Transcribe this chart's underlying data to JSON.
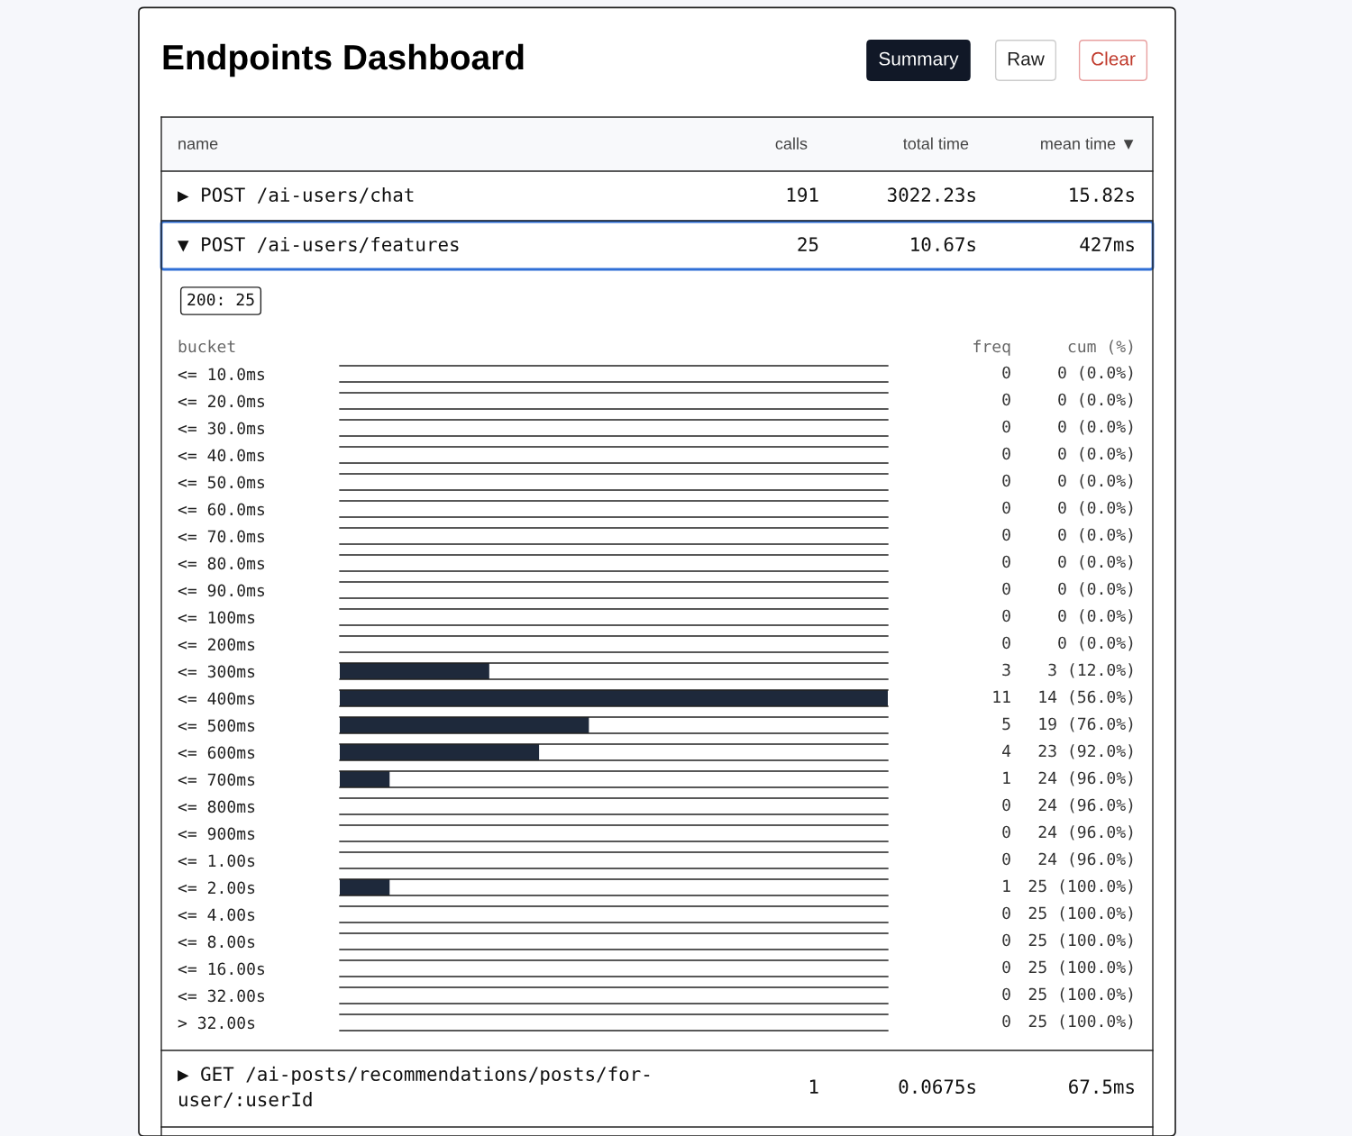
{
  "chart_data": {
    "type": "bar",
    "orientation": "horizontal",
    "title": "Endpoints Dashboard",
    "ylabel": "bucket",
    "categories": [
      "<= 10.0ms",
      "<= 20.0ms",
      "<= 30.0ms",
      "<= 40.0ms",
      "<= 50.0ms",
      "<= 60.0ms",
      "<= 70.0ms",
      "<= 80.0ms",
      "<= 90.0ms",
      "<= 100ms",
      "<= 200ms",
      "<= 300ms",
      "<= 400ms",
      "<= 500ms",
      "<= 600ms",
      "<= 700ms",
      "<= 800ms",
      "<= 900ms",
      "<= 1.00s",
      "<= 2.00s",
      "<= 4.00s",
      "<= 8.00s",
      "<= 16.00s",
      "<= 32.00s",
      "> 32.00s"
    ],
    "values": [
      0,
      0,
      0,
      0,
      0,
      0,
      0,
      0,
      0,
      0,
      0,
      3,
      11,
      5,
      4,
      1,
      0,
      0,
      0,
      1,
      0,
      0,
      0,
      0,
      0
    ],
    "color": "#1e293b",
    "xlim": [
      0,
      11
    ],
    "data_labels": true,
    "grid": false,
    "tick_labels": "y",
    "annotations": [
      "Summary",
      "Raw",
      "Clear",
      "name",
      "calls",
      "total time",
      "mean time ▼",
      "▶ POST /ai-users/chat",
      "191",
      "3022.23s",
      "15.82s",
      "▼ POST /ai-users/features",
      "25",
      "10.67s",
      "427ms",
      "200: 25",
      "freq",
      "cum (%)",
      "0 (0.0%)",
      "0 (0.0%)",
      "0 (0.0%)",
      "0 (0.0%)",
      "0 (0.0%)",
      "0 (0.0%)",
      "0 (0.0%)",
      "0 (0.0%)",
      "0 (0.0%)",
      "0 (0.0%)",
      "0 (0.0%)",
      "3 (12.0%)",
      "14 (56.0%)",
      "19 (76.0%)",
      "23 (92.0%)",
      "24 (96.0%)",
      "24 (96.0%)",
      "24 (96.0%)",
      "24 (96.0%)",
      "25 (100.0%)",
      "25 (100.0%)",
      "25 (100.0%)",
      "25 (100.0%)",
      "25 (100.0%)",
      "25 (100.0%)",
      "▶ GET /ai-posts/recommendations/posts/for-\nuser/:userId",
      "1",
      "0.0675s",
      "67.5ms"
    ]
  }
}
